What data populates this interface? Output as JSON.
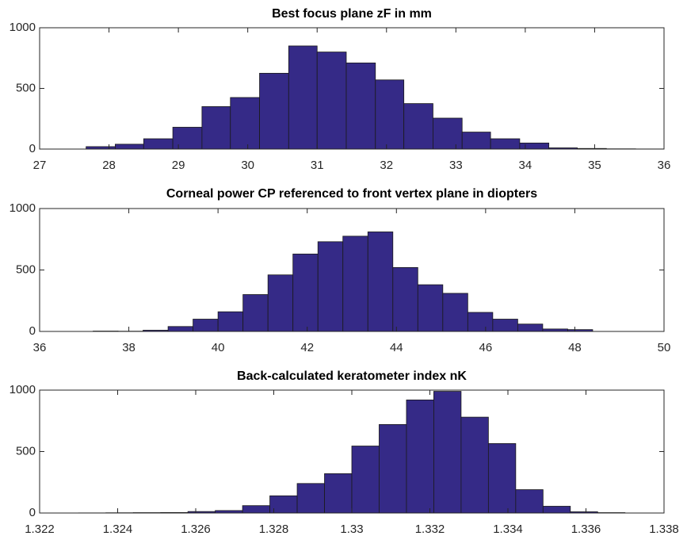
{
  "chart_data": [
    {
      "type": "histogram",
      "title": "Best focus plane zF in mm",
      "color": "#352a87",
      "bins": [
        27.67,
        28.09,
        28.5,
        28.92,
        29.34,
        29.75,
        30.17,
        30.59,
        31.0,
        31.42,
        31.84,
        32.25,
        32.67,
        33.09,
        33.5,
        33.92,
        34.34,
        34.75,
        35.17,
        35.59,
        36.0
      ],
      "values": [
        20,
        40,
        85,
        180,
        350,
        425,
        625,
        850,
        800,
        710,
        570,
        375,
        255,
        140,
        85,
        50,
        10,
        5,
        2,
        1
      ],
      "xlim": [
        27,
        36
      ],
      "xticks": [
        27,
        28,
        29,
        30,
        31,
        32,
        33,
        34,
        35,
        36
      ],
      "ylim": [
        0,
        1000
      ],
      "yticks": [
        0,
        500,
        1000
      ]
    },
    {
      "type": "histogram",
      "title": "Corneal power CP referenced to front vertex plane in diopters",
      "color": "#352a87",
      "bins": [
        37.2,
        37.76,
        38.32,
        38.88,
        39.44,
        40.0,
        40.56,
        41.12,
        41.68,
        42.24,
        42.8,
        43.36,
        43.92,
        44.48,
        45.04,
        45.6,
        46.16,
        46.72,
        47.28,
        47.84,
        48.4
      ],
      "values": [
        3,
        2,
        10,
        40,
        100,
        160,
        300,
        460,
        630,
        730,
        775,
        810,
        520,
        380,
        310,
        155,
        100,
        60,
        20,
        15
      ],
      "xlim": [
        36,
        50
      ],
      "xticks": [
        36,
        38,
        40,
        42,
        44,
        46,
        48,
        50
      ],
      "ylim": [
        0,
        1000
      ],
      "yticks": [
        0,
        500,
        1000
      ]
    },
    {
      "type": "histogram",
      "title": "Back-calculated keratometer index nK",
      "color": "#352a87",
      "bins": [
        1.323,
        1.3237,
        1.3244,
        1.3251,
        1.3258,
        1.3265,
        1.3272,
        1.3279,
        1.3286,
        1.3293,
        1.33,
        1.3307,
        1.3314,
        1.3321,
        1.3328,
        1.3335,
        1.3342,
        1.3349,
        1.3356,
        1.3363,
        1.337
      ],
      "values": [
        1,
        2,
        3,
        4,
        12,
        20,
        60,
        140,
        240,
        320,
        545,
        720,
        920,
        990,
        780,
        565,
        190,
        55,
        10,
        3
      ],
      "xlim": [
        1.322,
        1.338
      ],
      "xticks": [
        1.322,
        1.324,
        1.326,
        1.328,
        1.33,
        1.332,
        1.334,
        1.336,
        1.338
      ],
      "ylim": [
        0,
        1000
      ],
      "yticks": [
        0,
        500,
        1000
      ]
    }
  ]
}
